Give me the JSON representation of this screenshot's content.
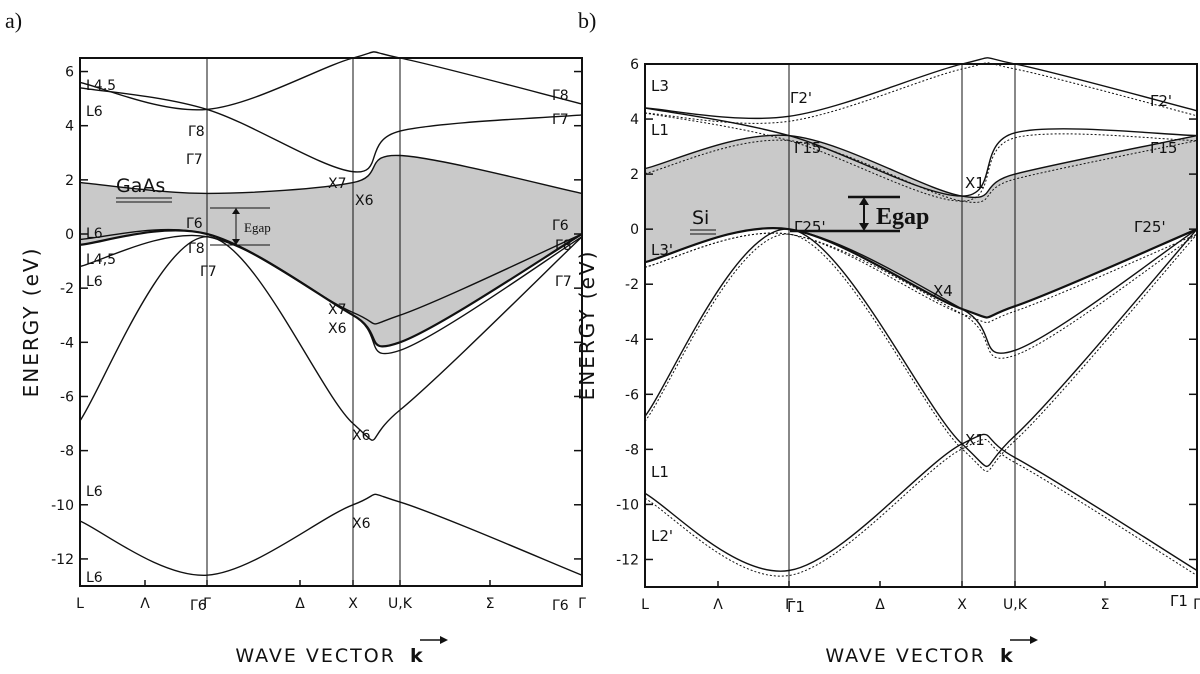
{
  "panels": [
    {
      "panel_label": "a)",
      "material": "GaAs",
      "gap_label": "Egap",
      "xlabel": "WAVE VECTOR",
      "xlabel_symbol": "k",
      "ylabel": "ENERGY (eV)",
      "yticks": [
        "6",
        "4",
        "2",
        "0",
        "-2",
        "-4",
        "-6",
        "-8",
        "-10",
        "-12"
      ],
      "kpoints": [
        "L",
        "Λ",
        "Γ",
        "Δ",
        "X",
        "U,K",
        "Σ",
        "Γ"
      ],
      "symmetry_labels": [
        "L4,5",
        "L6",
        "Γ8",
        "Γ7",
        "X7",
        "L6",
        "Γ6",
        "Γ8",
        "X6",
        "Γ6",
        "Γ8",
        "L4,5",
        "L6",
        "Γ7",
        "X7",
        "X6",
        "Γ7",
        "L6",
        "X6",
        "L6",
        "X6",
        "Γ6",
        "Γ6",
        "Γ8",
        "Γ7"
      ]
    },
    {
      "panel_label": "b)",
      "material": "Si",
      "gap_label": "Egap",
      "xlabel": "WAVE VECTOR",
      "xlabel_symbol": "k",
      "ylabel": "ENERGY (eV)",
      "yticks": [
        "6",
        "4",
        "2",
        "0",
        "-2",
        "-4",
        "-6",
        "-8",
        "-10",
        "-12"
      ],
      "kpoints": [
        "L",
        "Λ",
        "Γ",
        "Δ",
        "X",
        "U,K",
        "Σ",
        "Γ"
      ],
      "symmetry_labels": [
        "L3",
        "Γ2'",
        "L1",
        "Γ15",
        "X1",
        "Γ25'",
        "L3'",
        "X4",
        "X1",
        "L1",
        "L2'",
        "Γ1",
        "Γ2'",
        "Γ15",
        "Γ25'",
        "Γ1"
      ]
    }
  ],
  "chart_data": [
    {
      "type": "line",
      "title": "",
      "material": "GaAs",
      "xlabel": "WAVE VECTOR k",
      "ylabel": "ENERGY (eV)",
      "ylim": [
        -13,
        6.5
      ],
      "x_ticks": [
        "L",
        "Λ",
        "Γ",
        "Δ",
        "X",
        "U,K",
        "Σ",
        "Γ"
      ],
      "x_positions": [
        0,
        0.5,
        1,
        1.5,
        2,
        2.375,
        3.05,
        3.75
      ],
      "series": [
        {
          "x": [
            0,
            1,
            2,
            2.375,
            3.75
          ],
          "y": [
            -10.6,
            -12.6,
            -10.0,
            -9.9,
            -12.6
          ]
        },
        {
          "x": [
            0,
            1,
            2,
            2.375,
            3.75
          ],
          "y": [
            -6.9,
            -0.1,
            -7.0,
            -6.5,
            -0.1
          ]
        },
        {
          "x": [
            0,
            1,
            2,
            2.375,
            3.75
          ],
          "y": [
            -1.2,
            -0.1,
            -3.0,
            -4.3,
            -0.1
          ]
        },
        {
          "x": [
            0,
            1,
            2,
            2.375,
            3.75
          ],
          "y": [
            -0.4,
            0,
            -3.0,
            -4.0,
            0
          ]
        },
        {
          "x": [
            0,
            1,
            2,
            2.375,
            3.75
          ],
          "y": [
            -0.2,
            0,
            -2.9,
            -3.0,
            0
          ]
        },
        {
          "x": [
            0,
            1,
            2,
            2.375,
            3.75
          ],
          "y": [
            1.9,
            1.5,
            1.9,
            2.9,
            1.5
          ]
        },
        {
          "x": [
            0,
            1,
            2,
            2.375,
            3.75
          ],
          "y": [
            5.4,
            4.6,
            2.3,
            3.8,
            4.4
          ]
        },
        {
          "x": [
            0,
            1,
            2,
            2.375,
            3.75
          ],
          "y": [
            5.6,
            4.6,
            6.5,
            6.5,
            4.8
          ]
        }
      ],
      "shaded_band_gap": {
        "lower_series": 3,
        "upper_series": 5
      }
    },
    {
      "type": "line",
      "title": "",
      "material": "Si",
      "xlabel": "WAVE VECTOR k",
      "ylabel": "ENERGY (eV)",
      "ylim": [
        -13,
        6
      ],
      "x_ticks": [
        "L",
        "Λ",
        "Γ",
        "Δ",
        "X",
        "U,K",
        "Σ",
        "Γ"
      ],
      "x_positions": [
        0,
        0.5,
        1,
        1.5,
        2,
        2.375,
        3.05,
        3.75
      ],
      "series": [
        {
          "x": [
            0,
            1,
            2,
            2.375,
            3.75
          ],
          "y": [
            -9.6,
            -12.4,
            -7.8,
            -8.3,
            -12.4
          ]
        },
        {
          "x": [
            0,
            1,
            2,
            2.375,
            3.75
          ],
          "y": [
            -6.8,
            0,
            -7.8,
            -7.5,
            0
          ]
        },
        {
          "x": [
            0,
            1,
            2,
            2.375,
            3.75
          ],
          "y": [
            -1.2,
            0,
            -2.9,
            -4.4,
            0
          ]
        },
        {
          "x": [
            0,
            1,
            2,
            2.375,
            3.75
          ],
          "y": [
            -1.2,
            0,
            -2.9,
            -2.8,
            0
          ]
        },
        {
          "x": [
            0,
            1,
            2,
            2.375,
            3.75
          ],
          "y": [
            2.2,
            3.4,
            1.2,
            2.0,
            3.4
          ]
        },
        {
          "x": [
            0,
            1,
            2,
            2.375,
            3.75
          ],
          "y": [
            4.4,
            3.4,
            1.2,
            3.5,
            3.4
          ]
        },
        {
          "x": [
            0,
            1,
            2,
            2.375,
            3.75
          ],
          "y": [
            4.4,
            4.1,
            6.0,
            6.0,
            4.3
          ]
        }
      ],
      "shaded_band_gap": {
        "lower_series": 3,
        "upper_series": 4
      }
    }
  ]
}
